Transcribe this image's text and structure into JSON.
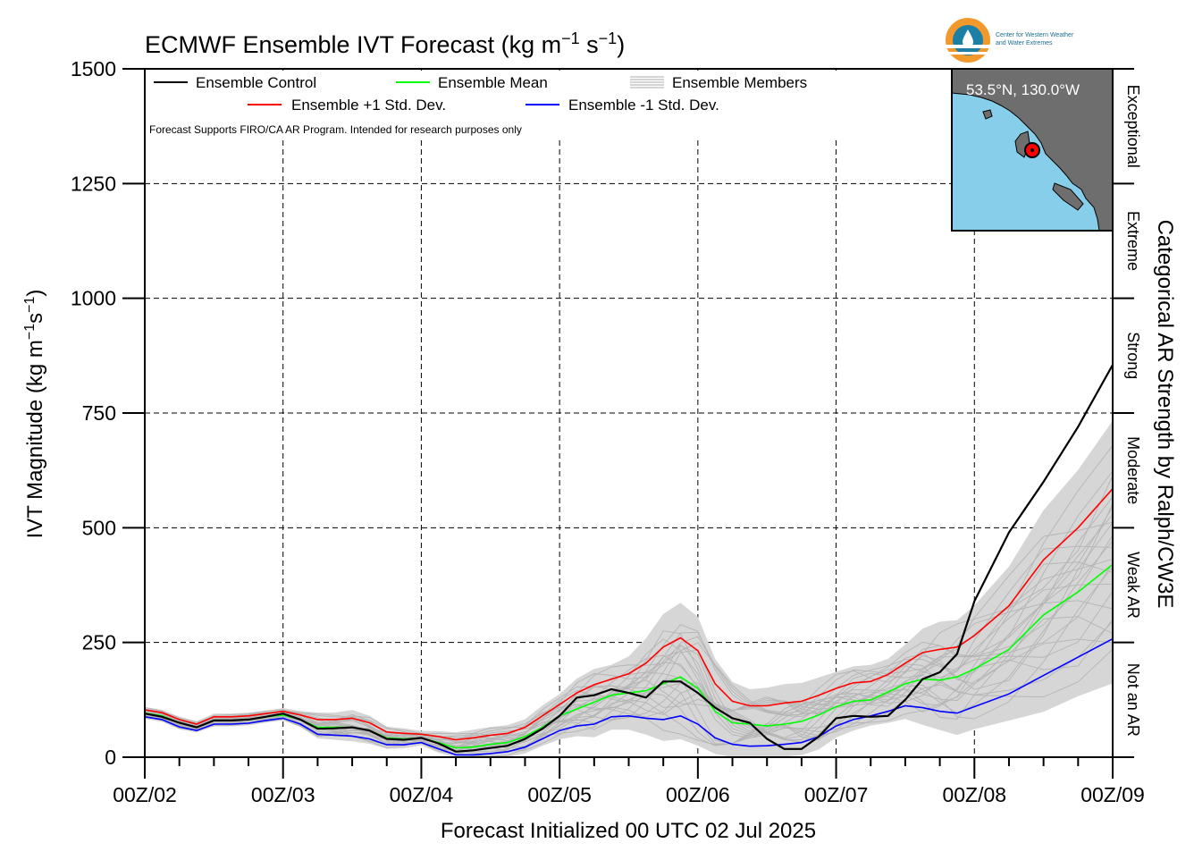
{
  "chart_data": {
    "type": "line",
    "title": "ECMWF Ensemble IVT Forecast",
    "title_units": "(kg m",
    "title_sup1": "−1",
    "title_units2": " s",
    "title_sup2": "−1",
    "title_close": ")",
    "xlabel": "Forecast Initialized 00 UTC 02 Jul 2025",
    "ylabel": "IVT Magnitude (kg m",
    "ylabel_sup1": "−1",
    "ylabel_mid": "s",
    "ylabel_sup2": "−1",
    "ylabel_close": ")",
    "right_label": "Categorical AR Strength by Ralph/CW3E",
    "note": "Forecast Supports FIRO/CA AR Program. Intended for research purposes only",
    "ylim": [
      0,
      1500
    ],
    "xlim_hours": [
      0,
      168
    ],
    "yticks": [
      0,
      250,
      500,
      750,
      1000,
      1250,
      1500
    ],
    "ytick_labels": [
      "0",
      "250",
      "500",
      "750",
      "1000",
      "1250",
      "1500"
    ],
    "xticks_hours": [
      0,
      24,
      48,
      72,
      96,
      120,
      144,
      168
    ],
    "xtick_labels": [
      "00Z/02",
      "00Z/03",
      "00Z/04",
      "00Z/05",
      "00Z/06",
      "00Z/07",
      "00Z/08",
      "00Z/09"
    ],
    "grid": true,
    "legend": {
      "placement": "top-left",
      "entries": [
        {
          "label": "Ensemble Control",
          "color": "#000000"
        },
        {
          "label": "Ensemble Mean",
          "color": "#00ff00"
        },
        {
          "label": "Ensemble Members",
          "color": "#aaaaaa"
        },
        {
          "label": "Ensemble +1 Std. Dev.",
          "color": "#ff0000"
        },
        {
          "label": "Ensemble -1 Std. Dev.",
          "color": "#0000ff"
        }
      ]
    },
    "categories_right": [
      {
        "label": "Not an AR",
        "range": [
          0,
          250
        ]
      },
      {
        "label": "Weak AR",
        "range": [
          250,
          500
        ]
      },
      {
        "label": "Moderate",
        "range": [
          500,
          750
        ]
      },
      {
        "label": "Strong",
        "range": [
          750,
          1000
        ]
      },
      {
        "label": "Extreme",
        "range": [
          1000,
          1250
        ]
      },
      {
        "label": "Exceptional",
        "range": [
          1250,
          1500
        ]
      }
    ],
    "inset": {
      "location_label": "53.5°N, 130.0°W",
      "land_color": "#6e6e6e",
      "water_color": "#87ceeb",
      "marker_color": "#ff0000"
    },
    "x_hours": [
      0,
      3,
      6,
      9,
      12,
      15,
      18,
      21,
      24,
      27,
      30,
      33,
      36,
      39,
      42,
      45,
      48,
      51,
      54,
      57,
      60,
      63,
      66,
      69,
      72,
      75,
      78,
      81,
      84,
      87,
      90,
      93,
      96,
      99,
      102,
      105,
      108,
      111,
      114,
      117,
      120,
      123,
      126,
      129,
      132,
      135,
      138,
      141,
      144,
      150,
      156,
      162,
      168
    ],
    "series": [
      {
        "name": "Ensemble Control",
        "color": "#000000",
        "values": [
          95,
          88,
          75,
          65,
          80,
          80,
          82,
          88,
          95,
          82,
          62,
          63,
          65,
          58,
          40,
          38,
          42,
          30,
          12,
          15,
          20,
          25,
          40,
          62,
          90,
          130,
          135,
          148,
          140,
          130,
          165,
          165,
          140,
          108,
          85,
          75,
          40,
          18,
          18,
          45,
          85,
          90,
          88,
          90,
          125,
          170,
          185,
          225,
          340,
          490,
          600,
          720,
          855
        ]
      },
      {
        "name": "Ensemble Mean",
        "color": "#00ff00",
        "values": [
          96,
          90,
          75,
          65,
          80,
          80,
          82,
          88,
          92,
          82,
          65,
          65,
          65,
          58,
          42,
          40,
          42,
          32,
          20,
          22,
          28,
          32,
          45,
          65,
          90,
          105,
          120,
          135,
          140,
          145,
          160,
          175,
          150,
          100,
          75,
          72,
          68,
          72,
          78,
          92,
          110,
          122,
          125,
          142,
          160,
          170,
          168,
          175,
          192,
          235,
          310,
          360,
          420
        ]
      },
      {
        "name": "Ensemble +1 Std. Dev.",
        "color": "#ff0000",
        "values": [
          103,
          97,
          82,
          72,
          88,
          88,
          90,
          95,
          100,
          92,
          82,
          82,
          85,
          75,
          55,
          52,
          50,
          45,
          38,
          42,
          48,
          52,
          65,
          90,
          115,
          140,
          158,
          170,
          182,
          205,
          240,
          260,
          232,
          160,
          122,
          112,
          112,
          118,
          122,
          135,
          150,
          162,
          165,
          180,
          205,
          228,
          235,
          240,
          265,
          330,
          430,
          500,
          585
        ]
      },
      {
        "name": "Ensemble -1 Std. Dev.",
        "color": "#0000ff",
        "values": [
          88,
          82,
          66,
          58,
          72,
          72,
          74,
          80,
          85,
          72,
          50,
          48,
          46,
          40,
          27,
          27,
          32,
          18,
          5,
          5,
          8,
          12,
          22,
          40,
          58,
          68,
          72,
          88,
          90,
          85,
          82,
          90,
          72,
          42,
          28,
          24,
          25,
          28,
          32,
          45,
          68,
          82,
          90,
          100,
          112,
          108,
          100,
          96,
          110,
          138,
          178,
          218,
          258
        ]
      }
    ]
  }
}
